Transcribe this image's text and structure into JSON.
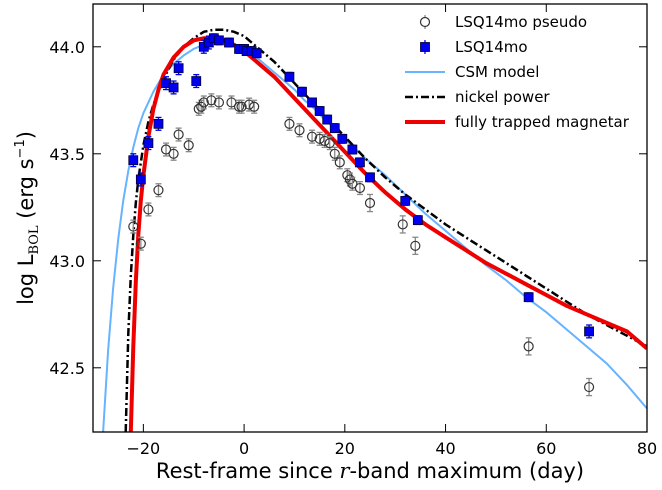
{
  "chart_data": {
    "type": "scatter",
    "xlabel": "Rest-frame since r-band maximum (day)",
    "xlabel_parts": [
      "Rest-frame since ",
      "r",
      "-band maximum (day)"
    ],
    "ylabel": "log L_BOL (erg s^-1)",
    "ylabel_parts": [
      "log L",
      "BOL",
      " (erg s",
      "−1",
      ")"
    ],
    "xlim": [
      -30,
      80
    ],
    "ylim": [
      42.2,
      44.2
    ],
    "xticks": [
      -20,
      0,
      20,
      40,
      60,
      80
    ],
    "xtick_labels": [
      "−20",
      "0",
      "20",
      "40",
      "60",
      "80"
    ],
    "yticks": [
      42.5,
      43.0,
      43.5,
      44.0
    ],
    "ytick_labels": [
      "42.5",
      "43.0",
      "43.5",
      "44.0"
    ],
    "grid": false,
    "legend_position": "top-right",
    "series": [
      {
        "name": "LSQ14mo pseudo",
        "kind": "points",
        "marker": "open-circle",
        "color": "#444444",
        "x": [
          -22,
          -20.5,
          -19,
          -17,
          -15.5,
          -14,
          -13,
          -11,
          -9,
          -8.5,
          -8,
          -6.5,
          -5,
          -2.5,
          -1,
          -0.5,
          1,
          2,
          9,
          11,
          13.5,
          15,
          16,
          17,
          18,
          19,
          20.5,
          21,
          21.5,
          23,
          25,
          31.5,
          34,
          56.5,
          68.5
        ],
        "y": [
          43.16,
          43.08,
          43.24,
          43.33,
          43.52,
          43.5,
          43.59,
          43.54,
          43.71,
          43.72,
          43.74,
          43.75,
          43.74,
          43.74,
          43.72,
          43.72,
          43.73,
          43.72,
          43.64,
          43.61,
          43.58,
          43.57,
          43.56,
          43.55,
          43.5,
          43.46,
          43.4,
          43.38,
          43.36,
          43.34,
          43.27,
          43.17,
          43.07,
          42.6,
          42.41
        ],
        "yerr": [
          0.03,
          0.03,
          0.03,
          0.03,
          0.03,
          0.03,
          0.03,
          0.03,
          0.03,
          0.03,
          0.03,
          0.03,
          0.03,
          0.03,
          0.03,
          0.03,
          0.03,
          0.03,
          0.03,
          0.03,
          0.03,
          0.03,
          0.03,
          0.03,
          0.03,
          0.03,
          0.03,
          0.03,
          0.03,
          0.03,
          0.04,
          0.04,
          0.04,
          0.04,
          0.04
        ]
      },
      {
        "name": "LSQ14mo",
        "kind": "points",
        "marker": "filled-square",
        "color": "#0000ee",
        "x": [
          -22,
          -20.5,
          -19,
          -17,
          -15.5,
          -14,
          -13,
          -9.5,
          -8,
          -7,
          -6,
          -5,
          -3,
          -1,
          0,
          0.5,
          1.5,
          2.5,
          9,
          11.5,
          13.5,
          15,
          16.5,
          18,
          19.5,
          21.5,
          23,
          25,
          32,
          34.5,
          56.5,
          68.5
        ],
        "y": [
          43.47,
          43.38,
          43.55,
          43.64,
          43.83,
          43.81,
          43.9,
          43.84,
          44.0,
          44.02,
          44.04,
          44.03,
          44.02,
          43.99,
          43.99,
          43.98,
          43.98,
          43.97,
          43.86,
          43.79,
          43.74,
          43.7,
          43.66,
          43.62,
          43.57,
          43.52,
          43.46,
          43.39,
          43.28,
          43.19,
          42.83,
          42.67
        ],
        "yerr": [
          0.03,
          0.03,
          0.03,
          0.03,
          0.03,
          0.03,
          0.03,
          0.03,
          0.03,
          0.03,
          0.02,
          0.02,
          0.02,
          0.02,
          0.02,
          0.02,
          0.02,
          0.02,
          0.02,
          0.02,
          0.02,
          0.02,
          0.02,
          0.02,
          0.02,
          0.02,
          0.02,
          0.02,
          0.02,
          0.02,
          0.02,
          0.03
        ]
      },
      {
        "name": "CSM model",
        "kind": "line",
        "style": "solid",
        "color": "#66b3ff",
        "x": [
          -28,
          -27,
          -26,
          -25,
          -24,
          -23,
          -22,
          -21,
          -20,
          -18,
          -16,
          -14,
          -12,
          -10,
          -8,
          -6,
          -4,
          -2,
          0,
          2,
          4,
          6,
          8,
          10,
          12,
          14,
          16,
          18,
          20,
          24,
          28,
          32,
          36,
          40,
          44,
          48,
          52,
          56,
          60,
          64,
          68,
          72,
          76,
          80
        ],
        "y": [
          42.2,
          42.58,
          42.87,
          43.1,
          43.28,
          43.42,
          43.53,
          43.62,
          43.69,
          43.79,
          43.87,
          43.92,
          43.96,
          43.99,
          44.01,
          44.02,
          44.02,
          44.01,
          43.99,
          43.96,
          43.92,
          43.88,
          43.84,
          43.8,
          43.75,
          43.71,
          43.66,
          43.62,
          43.57,
          43.48,
          43.4,
          43.31,
          43.22,
          43.14,
          43.06,
          42.98,
          42.91,
          42.83,
          42.76,
          42.68,
          42.6,
          42.52,
          42.42,
          42.31
        ]
      },
      {
        "name": "nickel power",
        "kind": "line",
        "style": "dashdot",
        "color": "#000000",
        "x": [
          -23.5,
          -23,
          -22.5,
          -22,
          -21.5,
          -21,
          -20,
          -19,
          -18,
          -16,
          -14,
          -12,
          -10,
          -8,
          -6,
          -4,
          -2,
          0,
          2,
          4,
          6,
          8,
          10,
          12,
          14,
          16,
          18,
          20,
          24,
          28,
          32,
          36,
          40,
          44,
          48,
          52,
          56,
          60,
          64,
          68,
          72,
          76,
          80
        ],
        "y": [
          42.2,
          42.66,
          42.93,
          43.12,
          43.27,
          43.38,
          43.54,
          43.65,
          43.73,
          43.85,
          43.94,
          44.0,
          44.04,
          44.07,
          44.08,
          44.08,
          44.07,
          44.05,
          44.01,
          43.97,
          43.93,
          43.88,
          43.83,
          43.78,
          43.73,
          43.68,
          43.63,
          43.58,
          43.48,
          43.39,
          43.31,
          43.24,
          43.17,
          43.11,
          43.05,
          42.99,
          42.93,
          42.87,
          42.81,
          42.75,
          42.7,
          42.65,
          42.6
        ]
      },
      {
        "name": "fully trapped magnetar",
        "kind": "line",
        "style": "solid",
        "color": "#ee0000",
        "x": [
          -22.5,
          -22,
          -21.5,
          -21,
          -20.5,
          -20,
          -19,
          -18,
          -17,
          -16,
          -14,
          -12,
          -10,
          -8,
          -6,
          -4,
          -2,
          0,
          2,
          4,
          6,
          8,
          10,
          12,
          14,
          16,
          18,
          20,
          24,
          28,
          32,
          36,
          40,
          44,
          48,
          52,
          56,
          60,
          64,
          68,
          72,
          76,
          80
        ],
        "y": [
          42.2,
          42.6,
          42.9,
          43.12,
          43.28,
          43.4,
          43.58,
          43.71,
          43.8,
          43.87,
          43.95,
          44.0,
          44.03,
          44.04,
          44.04,
          44.03,
          44.01,
          43.98,
          43.94,
          43.9,
          43.86,
          43.81,
          43.76,
          43.71,
          43.66,
          43.61,
          43.56,
          43.51,
          43.41,
          43.32,
          43.24,
          43.17,
          43.11,
          43.05,
          42.99,
          42.94,
          42.89,
          42.84,
          42.79,
          42.75,
          42.71,
          42.67,
          42.59
        ]
      }
    ]
  }
}
